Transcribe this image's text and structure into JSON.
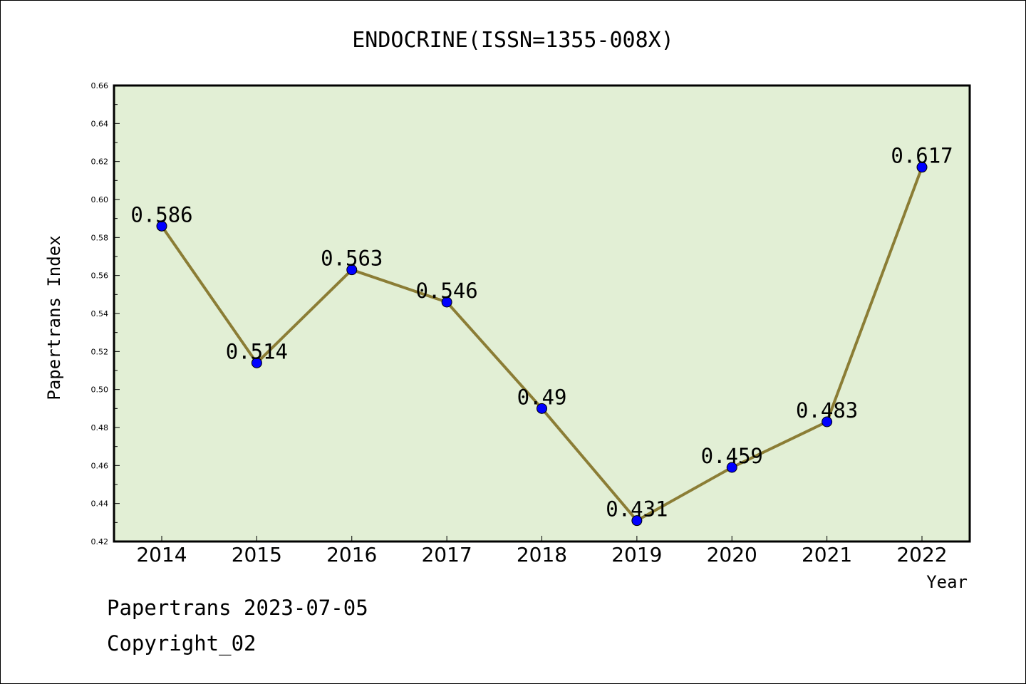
{
  "chart_data": {
    "type": "line",
    "title": "ENDOCRINE(ISSN=1355-008X)",
    "xlabel": "Year",
    "ylabel": "Papertrans Index",
    "categories": [
      "2014",
      "2015",
      "2016",
      "2017",
      "2018",
      "2019",
      "2020",
      "2021",
      "2022"
    ],
    "series": [
      {
        "values": [
          0.586,
          0.514,
          0.563,
          0.546,
          0.49,
          0.431,
          0.459,
          0.483,
          0.617
        ],
        "labels": [
          "0.586",
          "0.514",
          "0.563",
          "0.546",
          "0.49",
          "0.431",
          "0.459",
          "0.483",
          "0.617"
        ],
        "line_color": "#8b7d35",
        "marker_color": "#0000ff"
      }
    ],
    "ylim": [
      0.42,
      0.66
    ],
    "yticks": [
      "0.42",
      "0.44",
      "0.46",
      "0.48",
      "0.50",
      "0.52",
      "0.54",
      "0.56",
      "0.58",
      "0.60",
      "0.62",
      "0.64",
      "0.66"
    ],
    "plot_background": "#e2efd5",
    "grid": false,
    "legend": "none"
  },
  "footer": {
    "line1": "Papertrans 2023-07-05",
    "line2": "Copyright_02"
  }
}
